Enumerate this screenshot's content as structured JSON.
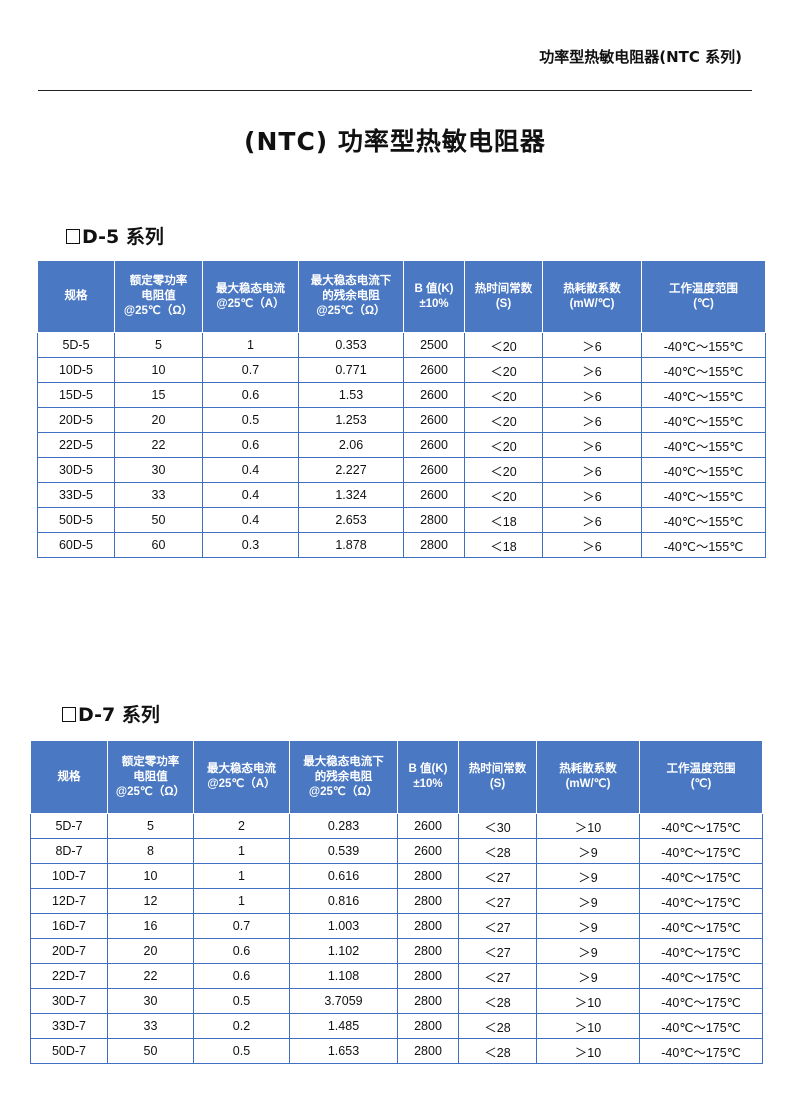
{
  "header": {
    "title": "功率型热敏电阻器(NTC 系列)"
  },
  "main_title": "(NTC) 功率型热敏电阻器",
  "tables": [
    {
      "title": "D-5 系列",
      "headers": [
        "规格",
        "额定零功率\n电阻值\n@25℃（Ω）",
        "最大稳态电流\n@25℃（A）",
        "最大稳态电流下\n的残余电阻\n@25℃（Ω）",
        "B 值(K)\n±10%",
        "热时间常数\n(S)",
        "热耗散系数\n(mW/℃)",
        "工作温度范围\n(℃)"
      ],
      "rows": [
        [
          "5D-5",
          "5",
          "1",
          "0.353",
          "2500",
          "＜20",
          "＞6",
          "-40℃～155℃"
        ],
        [
          "10D-5",
          "10",
          "0.7",
          "0.771",
          "2600",
          "＜20",
          "＞6",
          "-40℃～155℃"
        ],
        [
          "15D-5",
          "15",
          "0.6",
          "1.53",
          "2600",
          "＜20",
          "＞6",
          "-40℃～155℃"
        ],
        [
          "20D-5",
          "20",
          "0.5",
          "1.253",
          "2600",
          "＜20",
          "＞6",
          "-40℃～155℃"
        ],
        [
          "22D-5",
          "22",
          "0.6",
          "2.06",
          "2600",
          "＜20",
          "＞6",
          "-40℃～155℃"
        ],
        [
          "30D-5",
          "30",
          "0.4",
          "2.227",
          "2600",
          "＜20",
          "＞6",
          "-40℃～155℃"
        ],
        [
          "33D-5",
          "33",
          "0.4",
          "1.324",
          "2600",
          "＜20",
          "＞6",
          "-40℃～155℃"
        ],
        [
          "50D-5",
          "50",
          "0.4",
          "2.653",
          "2800",
          "＜18",
          "＞6",
          "-40℃～155℃"
        ],
        [
          "60D-5",
          "60",
          "0.3",
          "1.878",
          "2800",
          "＜18",
          "＞6",
          "-40℃～155℃"
        ]
      ]
    },
    {
      "title": "D-7 系列",
      "headers": [
        "规格",
        "额定零功率\n电阻值\n@25℃（Ω）",
        "最大稳态电流\n@25℃（A）",
        "最大稳态电流下\n的残余电阻\n@25℃（Ω）",
        "B 值(K)\n±10%",
        "热时间常数\n(S)",
        "热耗散系数\n(mW/℃)",
        "工作温度范围\n(℃)"
      ],
      "rows": [
        [
          "5D-7",
          "5",
          "2",
          "0.283",
          "2600",
          "＜30",
          "＞10",
          "-40℃～175℃"
        ],
        [
          "8D-7",
          "8",
          "1",
          "0.539",
          "2600",
          "＜28",
          "＞9",
          "-40℃～175℃"
        ],
        [
          "10D-7",
          "10",
          "1",
          "0.616",
          "2800",
          "＜27",
          "＞9",
          "-40℃～175℃"
        ],
        [
          "12D-7",
          "12",
          "1",
          "0.816",
          "2800",
          "＜27",
          "＞9",
          "-40℃～175℃"
        ],
        [
          "16D-7",
          "16",
          "0.7",
          "1.003",
          "2800",
          "＜27",
          "＞9",
          "-40℃～175℃"
        ],
        [
          "20D-7",
          "20",
          "0.6",
          "1.102",
          "2800",
          "＜27",
          "＞9",
          "-40℃～175℃"
        ],
        [
          "22D-7",
          "22",
          "0.6",
          "1.108",
          "2800",
          "＜27",
          "＞9",
          "-40℃～175℃"
        ],
        [
          "30D-7",
          "30",
          "0.5",
          "3.7059",
          "2800",
          "＜28",
          "＞10",
          "-40℃～175℃"
        ],
        [
          "33D-7",
          "33",
          "0.2",
          "1.485",
          "2800",
          "＜28",
          "＞10",
          "-40℃～175℃"
        ],
        [
          "50D-7",
          "50",
          "0.5",
          "1.653",
          "2800",
          "＜28",
          "＞10",
          "-40℃～175℃"
        ]
      ]
    }
  ]
}
